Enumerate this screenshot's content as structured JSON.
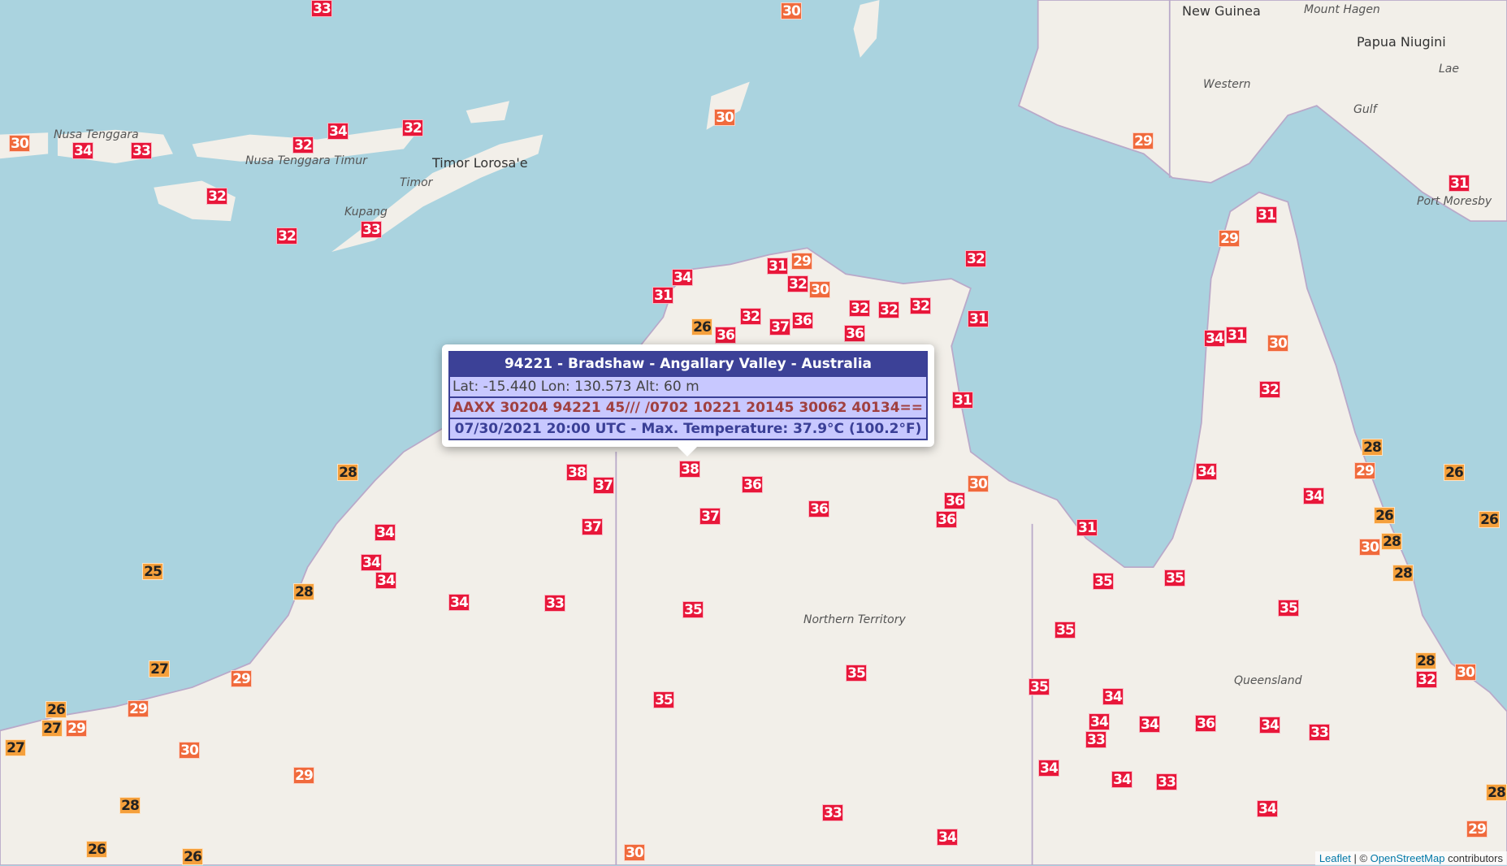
{
  "map": {
    "colors": {
      "ocean": "#aad3df",
      "land": "#f2efe9",
      "hot": "#e8173a",
      "warm": "#f06a3c",
      "mild": "#f5a03c"
    },
    "place_labels": [
      "New Guinea",
      "Papua Niugini",
      "Port Moresby",
      "Western",
      "Gulf",
      "Lae",
      "Mount Hagen",
      "Timor Lorosa'e",
      "Timor",
      "Kupang",
      "Nusa Tenggara Timur",
      "Nusa Tenggara",
      "Northern Territory",
      "Queensland"
    ],
    "markers": [
      30,
      33,
      30,
      34,
      33,
      32,
      34,
      32,
      30,
      32,
      32,
      33,
      29,
      31,
      31,
      29,
      34,
      31,
      29,
      32,
      30,
      31,
      32,
      32,
      32,
      32,
      31,
      32,
      36,
      37,
      26,
      36,
      34,
      31,
      30,
      32,
      31,
      36,
      28,
      38,
      37,
      38,
      36,
      37,
      36,
      36,
      36,
      30,
      31,
      34,
      28,
      29,
      34,
      26,
      26,
      28,
      30,
      26,
      28,
      34,
      34,
      34,
      37,
      25,
      28,
      34,
      33,
      35,
      35,
      35,
      35,
      35,
      27,
      29,
      35,
      35,
      34,
      34,
      33,
      34,
      36,
      34,
      33,
      32,
      28,
      30,
      26,
      27,
      29,
      29,
      27,
      35,
      30,
      29,
      34,
      34,
      33,
      34,
      33,
      34,
      28,
      26,
      26,
      30,
      29,
      28
    ]
  },
  "popup": {
    "title": "94221 - Bradshaw - Angallary Valley - Australia",
    "coords": "Lat: -15.440 Lon: 130.573 Alt: 60 m",
    "synop": "AAXX 30204 94221 45/// /0702 10221 20145 30062 40134==",
    "observation": "07/30/2021 20:00 UTC - Max. Temperature: 37.9°C (100.2°F)"
  },
  "attribution": {
    "leaflet": "Leaflet",
    "sep": " | © ",
    "osm": "OpenStreetMap",
    "suffix": " contributors"
  }
}
